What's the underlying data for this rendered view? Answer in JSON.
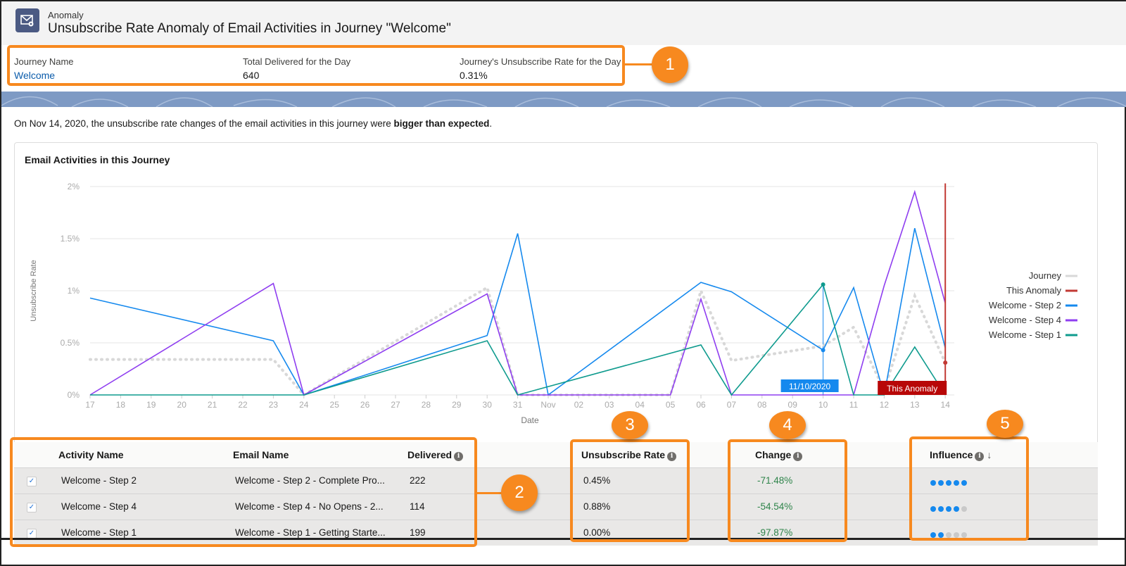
{
  "header": {
    "object_label": "Anomaly",
    "title": "Unsubscribe Rate Anomaly of Email Activities in Journey \"Welcome\"",
    "icon": "email-anomaly-icon"
  },
  "summary": {
    "journey_name_label": "Journey Name",
    "journey_name": "Welcome",
    "delivered_label": "Total Delivered for the Day",
    "delivered": "640",
    "rate_label": "Journey's Unsubscribe Rate for the Day",
    "rate": "0.31%"
  },
  "description": {
    "prefix": "On Nov 14, 2020, the unsubscribe rate changes of the email activities in this journey were ",
    "emphasis": "bigger than expected",
    "suffix": "."
  },
  "chart_data": {
    "type": "line",
    "title": "Email Activities in this Journey",
    "xlabel": "Date",
    "ylabel": "Unsubscribe Rate",
    "x_ticks": [
      "17",
      "18",
      "19",
      "20",
      "21",
      "22",
      "23",
      "24",
      "25",
      "26",
      "27",
      "28",
      "29",
      "30",
      "31",
      "Nov",
      "02",
      "03",
      "04",
      "05",
      "06",
      "07",
      "08",
      "09",
      "10",
      "11",
      "12",
      "13",
      "14"
    ],
    "y_ticks": [
      "0%",
      "0.5%",
      "1%",
      "1.5%",
      "2%"
    ],
    "ylim": [
      0,
      2
    ],
    "grid": true,
    "legend": "right",
    "series": [
      {
        "name": "Journey",
        "color": "#d8d8d8",
        "style": "dotted",
        "points": [
          [
            "17",
            0.34
          ],
          [
            "23",
            0.34
          ],
          [
            "24",
            0
          ],
          [
            "30",
            1.03
          ],
          [
            "31",
            0
          ],
          [
            "Nov",
            0
          ],
          [
            "05",
            0
          ],
          [
            "06",
            1.0
          ],
          [
            "07",
            0.33
          ],
          [
            "10",
            0.47
          ],
          [
            "11",
            0.65
          ],
          [
            "12",
            0.05
          ],
          [
            "13",
            0.95
          ],
          [
            "14",
            0.31
          ]
        ]
      },
      {
        "name": "This Anomaly",
        "color": "#c23934",
        "style": "marker"
      },
      {
        "name": "Welcome - Step 2",
        "color": "#1589ee",
        "points": [
          [
            "17",
            0.93
          ],
          [
            "23",
            0.52
          ],
          [
            "24",
            0
          ],
          [
            "30",
            0.57
          ],
          [
            "31",
            1.55
          ],
          [
            "Nov",
            0
          ],
          [
            "06",
            1.08
          ],
          [
            "07",
            0.99
          ],
          [
            "10",
            0.43
          ],
          [
            "11",
            1.03
          ],
          [
            "12",
            0
          ],
          [
            "13",
            1.6
          ],
          [
            "14",
            0.45
          ]
        ]
      },
      {
        "name": "Welcome - Step 4",
        "color": "#8f3ef0",
        "points": [
          [
            "17",
            0
          ],
          [
            "23",
            1.07
          ],
          [
            "24",
            0
          ],
          [
            "30",
            0.97
          ],
          [
            "31",
            0
          ],
          [
            "05",
            0
          ],
          [
            "06",
            0.92
          ],
          [
            "07",
            0
          ],
          [
            "11",
            0
          ],
          [
            "12",
            1.05
          ],
          [
            "13",
            1.95
          ],
          [
            "14",
            0.88
          ]
        ]
      },
      {
        "name": "Welcome - Step 1",
        "color": "#0f9b8e",
        "points": [
          [
            "17",
            0
          ],
          [
            "24",
            0
          ],
          [
            "30",
            0.52
          ],
          [
            "31",
            0
          ],
          [
            "06",
            0.48
          ],
          [
            "07",
            0
          ],
          [
            "10",
            1.06
          ],
          [
            "11",
            0
          ],
          [
            "12",
            0
          ],
          [
            "13",
            0.46
          ],
          [
            "14",
            0
          ]
        ]
      }
    ],
    "hover_label": "11/10/2020",
    "hover_x": "10",
    "anomaly_label": "This Anomaly",
    "anomaly_x": "14"
  },
  "table": {
    "headers": {
      "activity": "Activity Name",
      "email": "Email Name",
      "delivered": "Delivered",
      "rate": "Unsubscribe Rate",
      "change": "Change",
      "influence": "Influence",
      "sort": "↓"
    },
    "rows": [
      {
        "activity": "Welcome - Step 2",
        "email": "Welcome - Step 2 - Complete Pro...",
        "delivered": "222",
        "rate": "0.45%",
        "change": "-71.48%",
        "influence": 5,
        "checked": true
      },
      {
        "activity": "Welcome - Step 4",
        "email": "Welcome - Step 4 - No Opens - 2...",
        "delivered": "114",
        "rate": "0.88%",
        "change": "-54.54%",
        "influence": 4,
        "checked": true
      },
      {
        "activity": "Welcome - Step 1",
        "email": "Welcome - Step 1 - Getting Starte...",
        "delivered": "199",
        "rate": "0.00%",
        "change": "-97.87%",
        "influence": 2,
        "checked": true
      }
    ]
  },
  "callouts": [
    "1",
    "2",
    "3",
    "4",
    "5"
  ],
  "colors": {
    "accent": "#f7891f",
    "link": "#0b5cab",
    "positive_change": "#2e844a",
    "influence_on": "#1589ee",
    "influence_off": "#c9c9c9"
  }
}
